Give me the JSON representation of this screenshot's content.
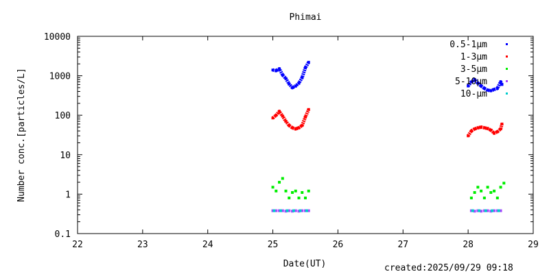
{
  "footer": {
    "created": "created:2025/09/29 09:18"
  },
  "chart_data": {
    "type": "scatter",
    "title": "Phimai",
    "xlabel": "Date(UT)",
    "ylabel": "Number conc.[particles/L]",
    "xlim": [
      22,
      29
    ],
    "ylim": [
      0.1,
      10000
    ],
    "yscale": "log",
    "grid": false,
    "legend_position": "top-right",
    "x_ticks": [
      "22",
      "23",
      "24",
      "25",
      "26",
      "27",
      "28",
      "29"
    ],
    "y_ticks": [
      "0.1",
      "1",
      "10",
      "100",
      "1000",
      "10000"
    ],
    "series": [
      {
        "name": "0.5-1μm",
        "color": "#0000ff",
        "x": [
          25.0,
          25.05,
          25.1,
          25.15,
          25.2,
          25.25,
          25.3,
          25.35,
          25.4,
          25.45,
          25.5,
          25.55,
          28.0,
          28.05,
          28.1,
          28.15,
          28.2,
          28.25,
          28.3,
          28.35,
          28.4,
          28.45,
          28.5,
          28.52
        ],
        "y": [
          1400,
          1350,
          1500,
          1050,
          850,
          620,
          500,
          550,
          650,
          900,
          1600,
          2200,
          550,
          700,
          800,
          650,
          550,
          480,
          430,
          420,
          450,
          480,
          700,
          600
        ]
      },
      {
        "name": "1-3μm",
        "color": "#ff0000",
        "x": [
          25.0,
          25.05,
          25.1,
          25.15,
          25.2,
          25.25,
          25.3,
          25.35,
          25.4,
          25.45,
          25.5,
          25.55,
          28.0,
          28.05,
          28.1,
          28.15,
          28.2,
          28.25,
          28.3,
          28.35,
          28.4,
          28.45,
          28.5,
          28.52
        ],
        "y": [
          85,
          100,
          125,
          95,
          70,
          55,
          48,
          45,
          48,
          55,
          90,
          140,
          30,
          40,
          45,
          48,
          50,
          48,
          46,
          42,
          35,
          38,
          45,
          60
        ]
      },
      {
        "name": "3-5μm",
        "color": "#00ee00",
        "x": [
          25.0,
          25.05,
          25.1,
          25.15,
          25.2,
          25.25,
          25.3,
          25.35,
          25.4,
          25.45,
          25.5,
          25.55,
          28.05,
          28.1,
          28.15,
          28.2,
          28.25,
          28.3,
          28.35,
          28.4,
          28.45,
          28.5,
          28.55
        ],
        "y": [
          1.5,
          1.2,
          2.0,
          2.5,
          1.2,
          0.8,
          1.1,
          1.2,
          0.8,
          1.1,
          0.8,
          1.2,
          0.8,
          1.1,
          1.5,
          1.2,
          0.8,
          1.5,
          1.1,
          1.2,
          0.8,
          1.5,
          1.9
        ]
      },
      {
        "name": "5-10μm",
        "color": "#aa44ff",
        "x": [
          25.0,
          25.05,
          25.1,
          25.15,
          25.2,
          25.25,
          25.3,
          25.35,
          25.4,
          25.45,
          25.5,
          25.55,
          28.05,
          28.1,
          28.15,
          28.2,
          28.25,
          28.3,
          28.35,
          28.4,
          28.45,
          28.5
        ],
        "y": [
          0.38,
          0.38,
          0.38,
          0.38,
          0.37,
          0.38,
          0.37,
          0.38,
          0.37,
          0.38,
          0.38,
          0.38,
          0.38,
          0.37,
          0.38,
          0.37,
          0.38,
          0.38,
          0.37,
          0.38,
          0.38,
          0.38
        ]
      },
      {
        "name": "10-μm",
        "color": "#00cccc",
        "x": [
          25.02,
          25.12,
          25.22,
          25.32,
          25.42,
          25.52,
          28.07,
          28.17,
          28.27,
          28.37,
          28.47
        ],
        "y": [
          0.38,
          0.38,
          0.38,
          0.38,
          0.38,
          0.38,
          0.38,
          0.38,
          0.38,
          0.38,
          0.38
        ]
      }
    ]
  }
}
